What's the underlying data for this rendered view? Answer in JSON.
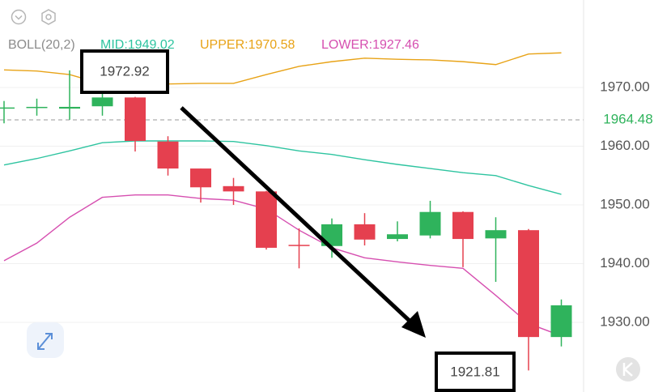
{
  "chart_data": {
    "type": "candlestick",
    "legend": [
      {
        "text": "BOLL(20,2)",
        "color": "#8c8c8c"
      },
      {
        "text": "MID:1949.02",
        "color": "#2ec4a0"
      },
      {
        "text": "UPPER:1970.58",
        "color": "#e8a317"
      },
      {
        "text": "LOWER:1927.46",
        "color": "#d64fb0"
      }
    ],
    "open": [
      1966.4,
      1966.5,
      1966.4,
      1966.8,
      1968.3,
      1960.8,
      1956.2,
      1953.2,
      1952.3,
      1943.2,
      1943.0,
      1946.7,
      1944.2,
      1944.8,
      1948.8,
      1944.3,
      1945.7,
      1927.5
    ],
    "high": [
      1967.7,
      1968.1,
      1972.92,
      1971.1,
      1968.4,
      1961.7,
      1956.2,
      1954.6,
      1952.4,
      1946.0,
      1947.7,
      1948.6,
      1947.2,
      1950.7,
      1948.9,
      1947.9,
      1945.9,
      1933.9
    ],
    "low": [
      1963.9,
      1965.2,
      1964.5,
      1965.2,
      1959.1,
      1955.0,
      1950.4,
      1950.0,
      1942.4,
      1939.2,
      1941.0,
      1943.1,
      1943.8,
      1944.3,
      1939.4,
      1936.9,
      1921.81,
      1925.9
    ],
    "close": [
      1966.6,
      1966.7,
      1966.7,
      1968.3,
      1960.9,
      1956.2,
      1953.0,
      1952.3,
      1942.7,
      1943.0,
      1946.7,
      1944.1,
      1945.0,
      1948.8,
      1944.2,
      1945.7,
      1927.5,
      1932.9
    ],
    "up_color": "#2fb35c",
    "down_color": "#e5404f",
    "overlays": [
      {
        "color": "#e8a317",
        "values": [
          1973.0,
          1972.8,
          1972.2,
          1970.6,
          1970.4,
          1970.6,
          1970.7,
          1970.7,
          1972.2,
          1973.6,
          1974.4,
          1975.0,
          1974.8,
          1974.7,
          1974.4,
          1973.9,
          1975.7,
          1975.9
        ]
      },
      {
        "color": "#2ec4a0",
        "values": [
          1956.8,
          1957.9,
          1959.2,
          1960.6,
          1960.9,
          1960.9,
          1960.9,
          1960.8,
          1960.1,
          1959.2,
          1958.6,
          1957.7,
          1956.9,
          1956.2,
          1955.5,
          1955.0,
          1953.3,
          1951.8
        ]
      },
      {
        "color": "#d64fb0",
        "values": [
          1940.5,
          1943.5,
          1947.9,
          1951.3,
          1951.7,
          1951.7,
          1951.1,
          1950.8,
          1949.3,
          1945.7,
          1942.7,
          1941.0,
          1940.3,
          1939.7,
          1939.2,
          1934.6,
          1929.8,
          1927.7
        ]
      }
    ],
    "ylim": [
      1918.14,
      1984.9
    ],
    "yticks": [
      {
        "value": 1930,
        "label": "1930.00"
      },
      {
        "value": 1940,
        "label": "1940.00"
      },
      {
        "value": 1950,
        "label": "1950.00"
      },
      {
        "value": 1960,
        "label": "1960.00"
      },
      {
        "value": 1970,
        "label": "1970.00"
      }
    ],
    "last_price": 1964.48,
    "last_price_color": "#2fb35c",
    "grid": true,
    "annotations": [
      {
        "text": "1972.92",
        "value": 1972.92
      },
      {
        "text": "1921.81",
        "value": 1921.81
      }
    ]
  }
}
